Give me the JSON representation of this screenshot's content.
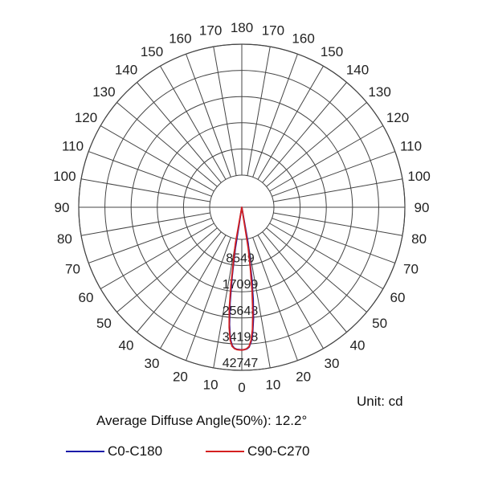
{
  "chart_data": {
    "type": "polar",
    "unit_label": "Unit: cd",
    "summary": "Average Diffuse Angle(50%): 12.2°",
    "angle_tick_labels": [
      "0",
      "10",
      "20",
      "30",
      "40",
      "50",
      "60",
      "70",
      "80",
      "90",
      "100",
      "110",
      "120",
      "130",
      "140",
      "150",
      "160",
      "170",
      "180"
    ],
    "radial_tick_values": [
      8549,
      17099,
      25648,
      34198,
      42747
    ],
    "radial_max": 42747,
    "series": [
      {
        "name": "C0-C180",
        "color": "#1a1aa8",
        "points": [
          [
            -9,
            3000
          ],
          [
            -8,
            12000
          ],
          [
            -7,
            21000
          ],
          [
            -6,
            28000
          ],
          [
            -5,
            32500
          ],
          [
            -4,
            34700
          ],
          [
            -3,
            35600
          ],
          [
            -2,
            35900
          ],
          [
            -1,
            36000
          ],
          [
            0,
            36100
          ],
          [
            1,
            36000
          ],
          [
            2,
            35800
          ],
          [
            3,
            35200
          ],
          [
            4,
            33500
          ],
          [
            5,
            30500
          ],
          [
            6,
            26000
          ],
          [
            7,
            20000
          ],
          [
            8,
            13000
          ],
          [
            9,
            5000
          ],
          [
            10,
            1500
          ]
        ]
      },
      {
        "name": "C90-C270",
        "color": "#d42020",
        "points": [
          [
            -10,
            1500
          ],
          [
            -9,
            6000
          ],
          [
            -8,
            15000
          ],
          [
            -7,
            23000
          ],
          [
            -6,
            29000
          ],
          [
            -5,
            33000
          ],
          [
            -4,
            35000
          ],
          [
            -3,
            35700
          ],
          [
            -2,
            36000
          ],
          [
            -1,
            36100
          ],
          [
            0,
            36100
          ],
          [
            1,
            36000
          ],
          [
            2,
            35700
          ],
          [
            3,
            35000
          ],
          [
            4,
            33000
          ],
          [
            5,
            29500
          ],
          [
            6,
            24000
          ],
          [
            7,
            17000
          ],
          [
            8,
            9500
          ],
          [
            9,
            3000
          ]
        ]
      }
    ]
  }
}
